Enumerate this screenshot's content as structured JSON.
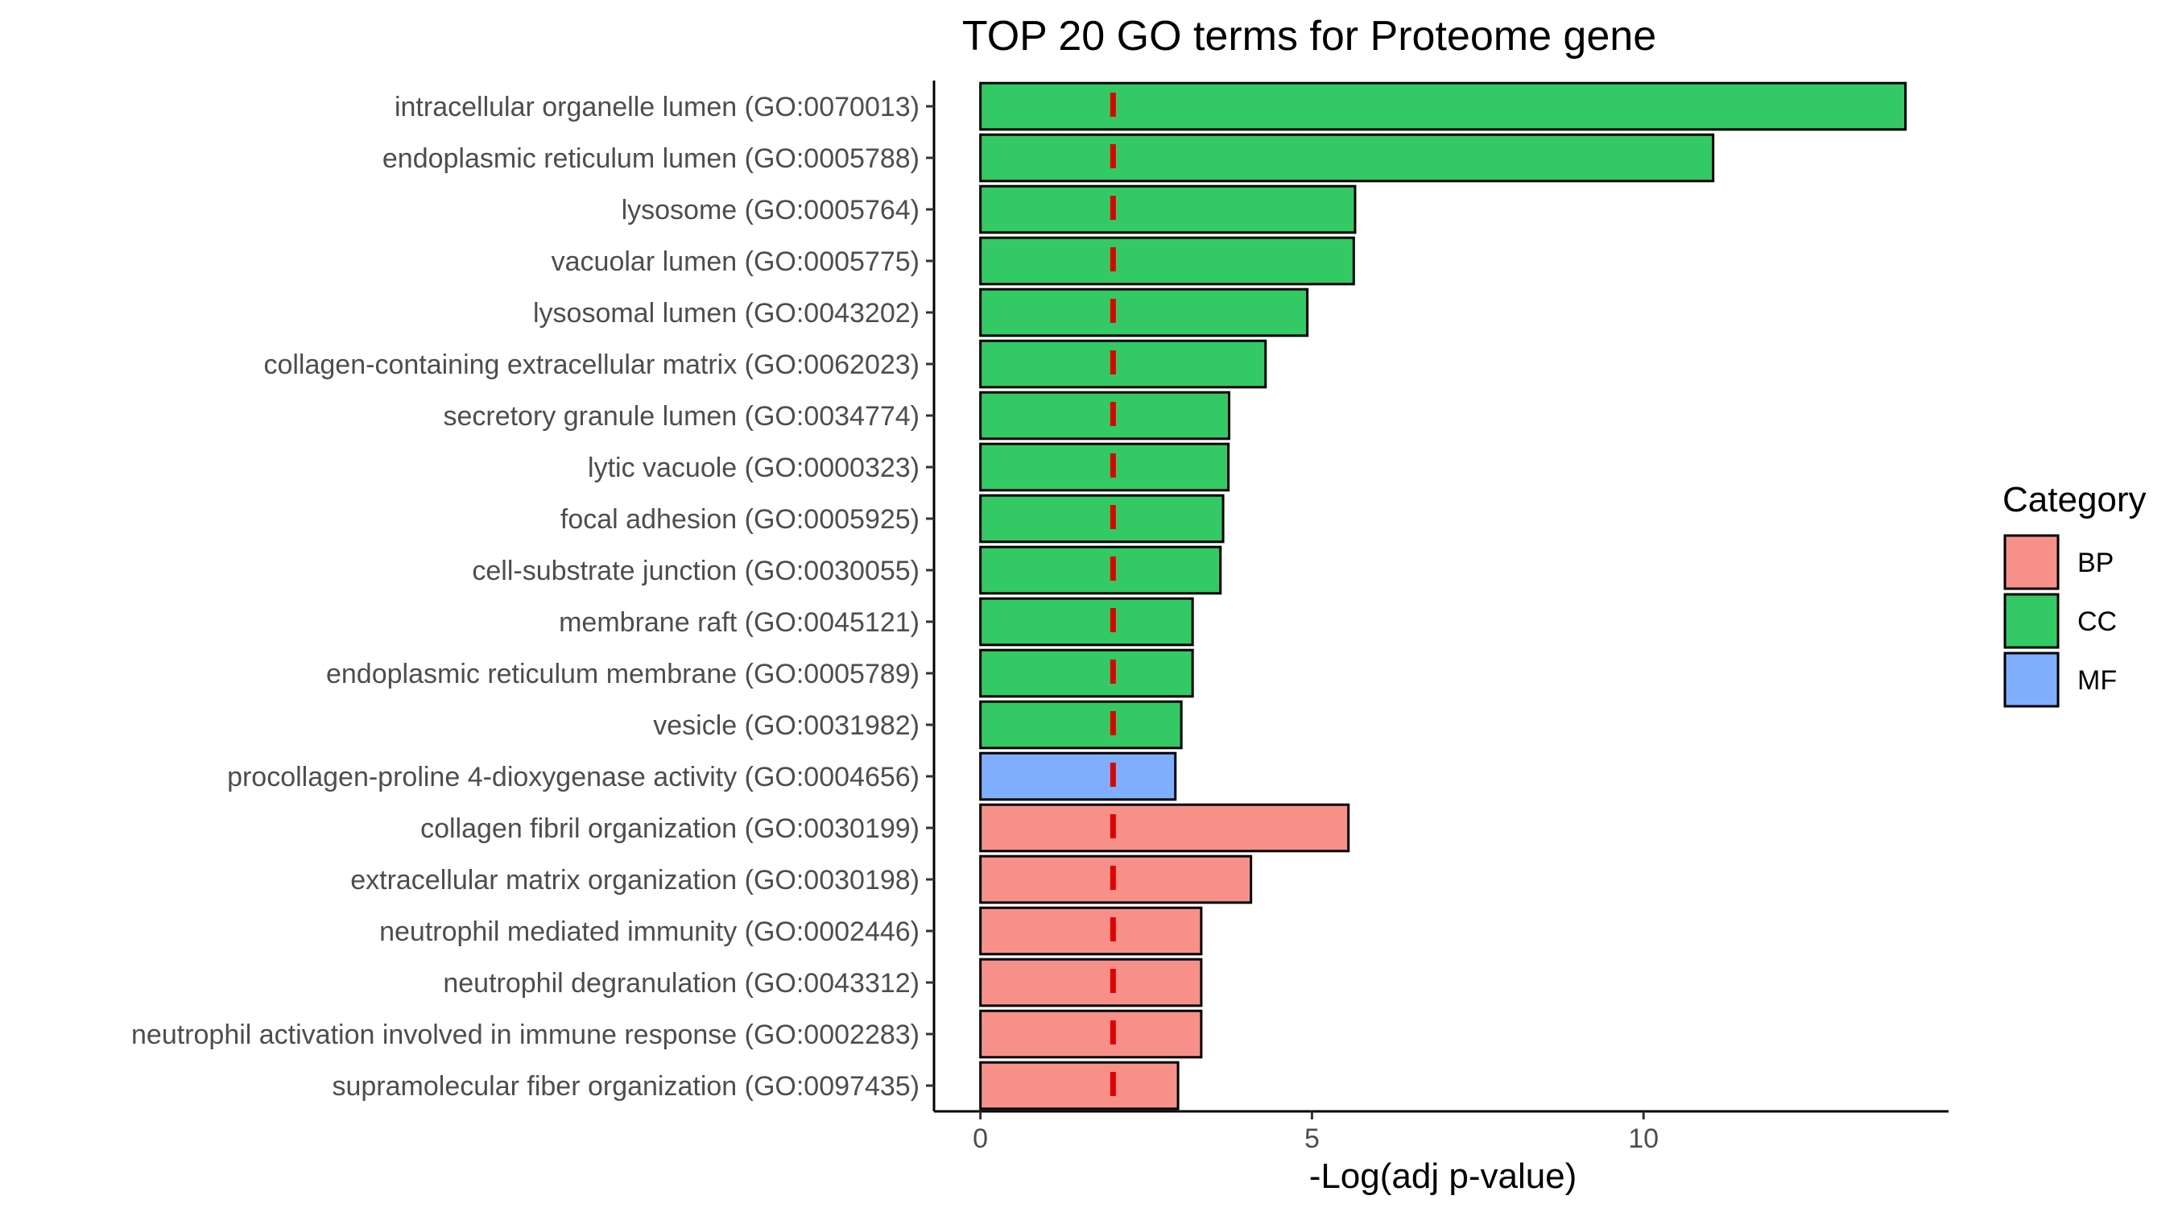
{
  "chart_data": {
    "type": "bar",
    "orientation": "horizontal",
    "title": "TOP 20 GO terms for Proteome gene",
    "xlabel": "-Log(adj p-value)",
    "ylabel": "",
    "xlim": [
      -0.7,
      14.6
    ],
    "xticks": [
      0,
      5,
      10
    ],
    "threshold": {
      "value": 2,
      "color": "#e00000",
      "style": "dashed"
    },
    "legend": {
      "title": "Category",
      "position": "right",
      "items": [
        {
          "label": "BP",
          "color": "#f8908a"
        },
        {
          "label": "CC",
          "color": "#33c964"
        },
        {
          "label": "MF",
          "color": "#80aeff"
        }
      ]
    },
    "grid": false,
    "bars": [
      {
        "term": "intracellular organelle lumen (GO:0070013)",
        "value": 13.95,
        "category": "CC"
      },
      {
        "term": "endoplasmic reticulum lumen (GO:0005788)",
        "value": 11.05,
        "category": "CC"
      },
      {
        "term": "lysosome (GO:0005764)",
        "value": 5.65,
        "category": "CC"
      },
      {
        "term": "vacuolar lumen (GO:0005775)",
        "value": 5.63,
        "category": "CC"
      },
      {
        "term": "lysosomal lumen (GO:0043202)",
        "value": 4.93,
        "category": "CC"
      },
      {
        "term": "collagen-containing extracellular matrix (GO:0062023)",
        "value": 4.3,
        "category": "CC"
      },
      {
        "term": "secretory granule lumen (GO:0034774)",
        "value": 3.75,
        "category": "CC"
      },
      {
        "term": "lytic vacuole (GO:0000323)",
        "value": 3.74,
        "category": "CC"
      },
      {
        "term": "focal adhesion (GO:0005925)",
        "value": 3.66,
        "category": "CC"
      },
      {
        "term": "cell-substrate junction (GO:0030055)",
        "value": 3.62,
        "category": "CC"
      },
      {
        "term": "membrane raft (GO:0045121)",
        "value": 3.2,
        "category": "CC"
      },
      {
        "term": "endoplasmic reticulum membrane (GO:0005789)",
        "value": 3.2,
        "category": "CC"
      },
      {
        "term": "vesicle (GO:0031982)",
        "value": 3.03,
        "category": "CC"
      },
      {
        "term": "procollagen-proline 4-dioxygenase activity (GO:0004656)",
        "value": 2.94,
        "category": "MF"
      },
      {
        "term": "collagen fibril organization (GO:0030199)",
        "value": 5.55,
        "category": "BP"
      },
      {
        "term": "extracellular matrix organization (GO:0030198)",
        "value": 4.08,
        "category": "BP"
      },
      {
        "term": "neutrophil mediated immunity (GO:0002446)",
        "value": 3.33,
        "category": "BP"
      },
      {
        "term": "neutrophil degranulation (GO:0043312)",
        "value": 3.33,
        "category": "BP"
      },
      {
        "term": "neutrophil activation involved in immune response (GO:0002283)",
        "value": 3.33,
        "category": "BP"
      },
      {
        "term": "supramolecular fiber organization (GO:0097435)",
        "value": 2.98,
        "category": "BP"
      }
    ]
  }
}
